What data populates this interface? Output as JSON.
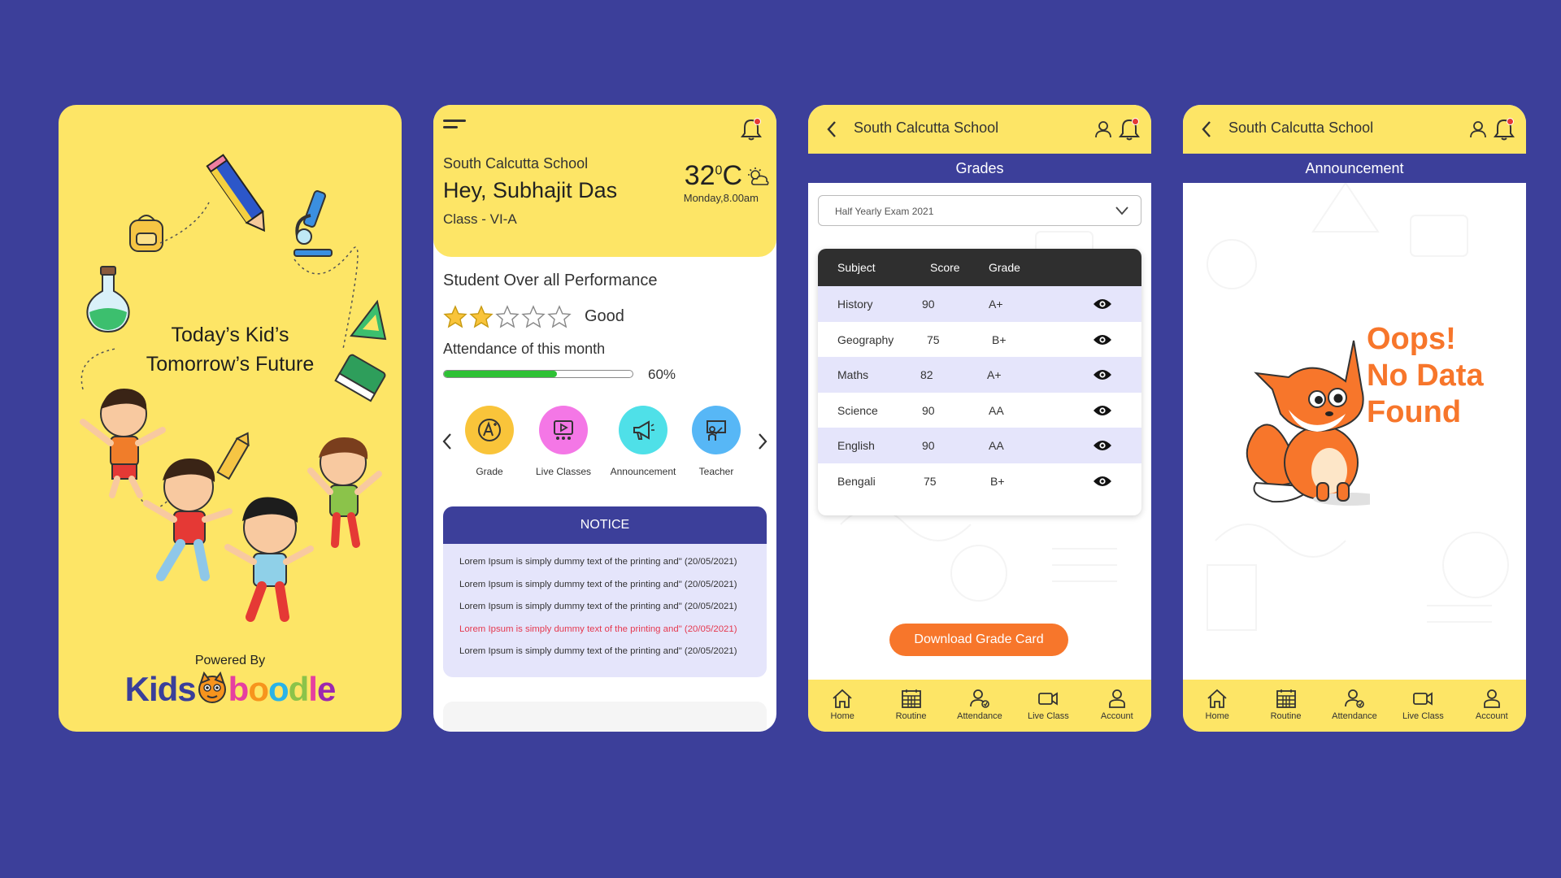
{
  "splash": {
    "tagline_line1": "Today’s Kid’s",
    "tagline_line2": "Tomorrow’s Future",
    "powered_by": "Powered By",
    "logo": "Kidsboodle"
  },
  "dashboard": {
    "school": "South Calcutta School",
    "greeting": "Hey, Subhajit Das",
    "class": "Class - VI-A",
    "temperature": "32",
    "temperature_unit": "C",
    "datetime": "Monday,8.00am",
    "weather_icon": "partly-cloudy-icon",
    "performance_title": "Student Over all Performance",
    "rating_stars": 2,
    "rating_max": 5,
    "rating_label": "Good",
    "attendance_title": "Attendance of this month",
    "attendance_percent": 60,
    "attendance_label": "60%",
    "quick_links": [
      {
        "label": "Grade",
        "color": "#f9c43a",
        "icon": "grade-icon"
      },
      {
        "label": "Live Classes",
        "color": "#f477e6",
        "icon": "video-icon"
      },
      {
        "label": "Announcement",
        "color": "#4fe0e8",
        "icon": "megaphone-icon"
      },
      {
        "label": "Teacher",
        "color": "#57b7f6",
        "icon": "teacher-icon"
      }
    ],
    "notice": {
      "title": "NOTICE",
      "items": [
        {
          "text": "Lorem Ipsum is simply dummy text of the printing and\" (20/05/2021)",
          "highlight": false
        },
        {
          "text": "Lorem Ipsum is simply dummy text of the printing and\" (20/05/2021)",
          "highlight": false
        },
        {
          "text": "Lorem Ipsum is simply dummy text of the printing and\" (20/05/2021)",
          "highlight": false
        },
        {
          "text": "Lorem Ipsum is simply dummy text of the printing and\" (20/05/2021)",
          "highlight": true
        },
        {
          "text": "Lorem Ipsum is simply dummy text of the printing and\" (20/05/2021)",
          "highlight": false
        }
      ]
    }
  },
  "grades": {
    "school": "South Calcutta School",
    "title": "Grades",
    "exam_select": "Half Yearly Exam 2021",
    "columns": [
      "Subject",
      "Score",
      "Grade"
    ],
    "rows": [
      {
        "subject": "History",
        "score": "90",
        "grade": "A+"
      },
      {
        "subject": "Geography",
        "score": "75",
        "grade": "B+"
      },
      {
        "subject": "Maths",
        "score": "82",
        "grade": "A+"
      },
      {
        "subject": "Science",
        "score": "90",
        "grade": "AA"
      },
      {
        "subject": "English",
        "score": "90",
        "grade": "AA"
      },
      {
        "subject": "Bengali",
        "score": "75",
        "grade": "B+"
      }
    ],
    "download_button": "Download Grade Card"
  },
  "announcement": {
    "school": "South Calcutta School",
    "title": "Announcement",
    "empty_line1": "Oops!",
    "empty_line2": "No Data",
    "empty_line3": "Found"
  },
  "tabs": [
    {
      "label": "Home",
      "icon": "home-icon"
    },
    {
      "label": "Routine",
      "icon": "calendar-icon"
    },
    {
      "label": "Attendance",
      "icon": "attendance-icon"
    },
    {
      "label": "Live Class",
      "icon": "video-camera-icon"
    },
    {
      "label": "Account",
      "icon": "user-icon"
    }
  ],
  "colors": {
    "background": "#3c3f9a",
    "yellow": "#fde566",
    "accent": "#3c3f9a",
    "orange": "#f7762b",
    "progress": "#2ec135",
    "notice_highlight": "#e53950"
  }
}
